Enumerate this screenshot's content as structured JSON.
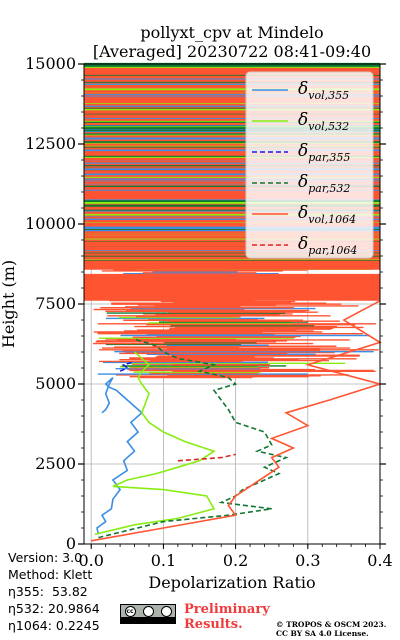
{
  "chart_data": {
    "type": "line",
    "title_lines": [
      "pollyxt_cpv at Mindelo",
      "[Averaged] 20230722 08:41-09:40"
    ],
    "xlabel": "Depolarization Ratio",
    "ylabel": "Height (m)",
    "xlim": [
      -0.01,
      0.4
    ],
    "ylim": [
      0,
      15000
    ],
    "xticks": [
      0.0,
      0.1,
      0.2,
      0.3,
      0.4
    ],
    "xtick_labels": [
      "0.0",
      "0.1",
      "0.2",
      "0.3",
      "0.4"
    ],
    "yticks": [
      0,
      2500,
      5000,
      7500,
      10000,
      12500,
      15000
    ],
    "ytick_labels": [
      "0",
      "2500",
      "5000",
      "7500",
      "10000",
      "12500",
      "15000"
    ],
    "grid": true,
    "legend_position": "top-right",
    "series": [
      {
        "name": "δvol,355",
        "legend_main": "δ",
        "legend_sub": "vol,355",
        "color": "#3a8ee6",
        "dash": "solid",
        "x": [
          0.01,
          0.008,
          0.02,
          0.015,
          0.028,
          0.03,
          0.04,
          0.03,
          0.05,
          0.045,
          0.06,
          0.05,
          0.065,
          0.055,
          0.07,
          0.06,
          0.05,
          0.04,
          0.035,
          0.025,
          0.02,
          0.025,
          0.03,
          0.025,
          0.02,
          0.025,
          0.02,
          0.015
        ],
        "y": [
          300,
          500,
          700,
          900,
          1100,
          1400,
          1700,
          2000,
          2300,
          2600,
          2900,
          3200,
          3500,
          3800,
          4100,
          4300,
          4500,
          4700,
          4800,
          4900,
          5000,
          5100,
          5200,
          5000,
          4700,
          4400,
          4200,
          4100
        ]
      },
      {
        "name": "δvol,532",
        "legend_main": "δ",
        "legend_sub": "vol,532",
        "color": "#88ee11",
        "dash": "solid",
        "x": [
          0.005,
          0.06,
          0.12,
          0.17,
          0.16,
          0.1,
          0.03,
          0.05,
          0.09,
          0.12,
          0.15,
          0.17,
          0.13,
          0.1,
          0.08,
          0.07,
          0.075,
          0.08,
          0.07,
          0.065,
          0.07,
          0.08,
          0.07,
          0.06
        ],
        "y": [
          300,
          600,
          800,
          1100,
          1500,
          1700,
          1800,
          2000,
          2200,
          2400,
          2600,
          2900,
          3200,
          3500,
          3800,
          4100,
          4400,
          4700,
          5000,
          5200,
          5400,
          5600,
          5800,
          6000
        ]
      },
      {
        "name": "δpar,355",
        "legend_main": "δ",
        "legend_sub": "par,355",
        "color": "#1a1aee",
        "dash": "dashed",
        "x": [
          0.04,
          0.05,
          0.045,
          0.06
        ],
        "y": [
          5400,
          5500,
          5600,
          5700
        ]
      },
      {
        "name": "δpar,532",
        "legend_main": "δ",
        "legend_sub": "par,532",
        "color": "#117733",
        "dash": "dashed",
        "x": [
          0.01,
          0.1,
          0.19,
          0.25,
          0.18,
          0.2,
          0.21,
          0.23,
          0.26,
          0.24,
          0.27,
          0.23,
          0.25,
          0.24,
          0.2,
          0.19,
          0.18,
          0.17,
          0.2,
          0.19,
          0.15,
          0.17,
          0.12,
          0.1,
          0.09,
          0.06
        ],
        "y": [
          200,
          700,
          900,
          1100,
          1300,
          1500,
          1700,
          1900,
          2200,
          2400,
          2700,
          2900,
          3100,
          3500,
          3800,
          4200,
          4500,
          4800,
          5000,
          5200,
          5400,
          5600,
          5800,
          6000,
          6200,
          6400
        ]
      },
      {
        "name": "δvol,1064",
        "legend_main": "δ",
        "legend_sub": "vol,1064",
        "color": "#ff5533",
        "dash": "solid",
        "x": [
          0.0,
          0.1,
          0.2,
          0.19,
          0.2,
          0.22,
          0.24,
          0.26,
          0.25,
          0.28,
          0.25,
          0.3,
          0.27,
          0.33,
          0.4,
          0.3,
          0.4,
          0.35,
          0.4
        ],
        "y": [
          100,
          500,
          900,
          1200,
          1500,
          1800,
          2100,
          2400,
          2700,
          3000,
          3300,
          3700,
          4100,
          4500,
          5000,
          5600,
          6300,
          7000,
          7600
        ]
      },
      {
        "name": "δpar,1064",
        "legend_main": "δ",
        "legend_sub": "par,1064",
        "color": "#dd2222",
        "dash": "dashed",
        "x": [
          0.12,
          0.18,
          0.2
        ],
        "y": [
          2600,
          2700,
          2800
        ]
      }
    ]
  },
  "info": {
    "version": "Version: 3.0",
    "method": "Method: Klett",
    "eta355": "η355:  53.82",
    "eta532": "η532: 20.9864",
    "eta1064": "η1064: 0.2245"
  },
  "footer": {
    "prelim_line1": "Preliminary",
    "prelim_line2": "Results.",
    "credit_line1": "© TROPOS & OSCM 2023.",
    "credit_line2": "CC BY SA 4.0 License.",
    "cc_icon": "creative-commons-by-sa-icon",
    "cc_text": "cc"
  }
}
